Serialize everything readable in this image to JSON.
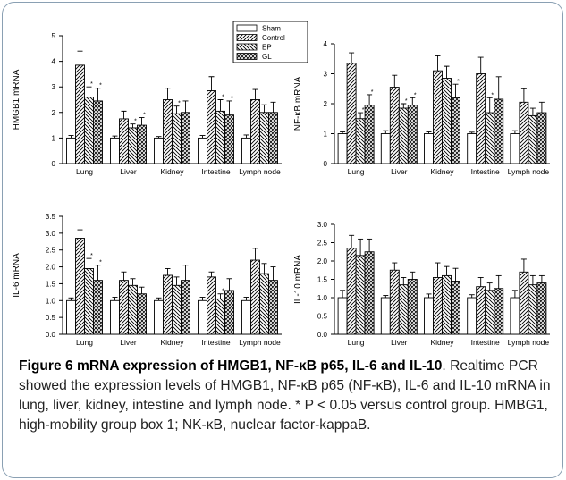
{
  "legend": [
    {
      "name": "Sham",
      "pattern": "plain"
    },
    {
      "name": "Control",
      "pattern": "diag-right"
    },
    {
      "name": "EP",
      "pattern": "diag-left"
    },
    {
      "name": "GL",
      "pattern": "crosshatch"
    }
  ],
  "chart_data": [
    {
      "type": "bar",
      "ylabel": "HMGB1 mRNA",
      "categories": [
        "Lung",
        "Liver",
        "Kidney",
        "Intestine",
        "Lymph node"
      ],
      "ylim": [
        0,
        5
      ],
      "yticks": [
        "0",
        "1",
        "2",
        "3",
        "4",
        "5"
      ],
      "series": [
        {
          "name": "Sham",
          "values": [
            1.0,
            1.0,
            1.0,
            1.0,
            1.0
          ],
          "errors": [
            0.1,
            0.08,
            0.06,
            0.1,
            0.12
          ]
        },
        {
          "name": "Control",
          "values": [
            3.85,
            1.75,
            2.5,
            2.85,
            2.5
          ],
          "errors": [
            0.55,
            0.3,
            0.45,
            0.55,
            0.4
          ]
        },
        {
          "name": "EP",
          "values": [
            2.6,
            1.4,
            1.95,
            2.05,
            2.0
          ],
          "errors": [
            0.4,
            0.15,
            0.3,
            0.45,
            0.3
          ]
        },
        {
          "name": "GL",
          "values": [
            2.45,
            1.5,
            2.0,
            1.9,
            2.0
          ],
          "errors": [
            0.5,
            0.3,
            0.45,
            0.55,
            0.4
          ]
        }
      ],
      "annotations": [
        {
          "category": 0,
          "series": 2,
          "text": "*"
        },
        {
          "category": 0,
          "series": 3,
          "text": "*"
        },
        {
          "category": 1,
          "series": 2,
          "text": "*"
        },
        {
          "category": 1,
          "series": 3,
          "text": "*"
        },
        {
          "category": 2,
          "series": 2,
          "text": "*"
        },
        {
          "category": 3,
          "series": 2,
          "text": "*"
        },
        {
          "category": 3,
          "series": 3,
          "text": "*"
        }
      ]
    },
    {
      "type": "bar",
      "ylabel": "NF-κB mRNA",
      "categories": [
        "Lung",
        "Liver",
        "Kidney",
        "Intestine",
        "Lymph node"
      ],
      "ylim": [
        0,
        4
      ],
      "yticks": [
        "0",
        "1",
        "2",
        "3",
        "4"
      ],
      "series": [
        {
          "name": "Sham",
          "values": [
            1.0,
            1.0,
            1.0,
            1.0,
            1.0
          ],
          "errors": [
            0.06,
            0.1,
            0.06,
            0.05,
            0.1
          ]
        },
        {
          "name": "Control",
          "values": [
            3.35,
            2.55,
            3.1,
            3.0,
            2.05
          ],
          "errors": [
            0.35,
            0.4,
            0.5,
            0.55,
            0.45
          ]
        },
        {
          "name": "EP",
          "values": [
            1.5,
            1.85,
            2.85,
            1.7,
            1.6
          ],
          "errors": [
            0.2,
            0.15,
            0.4,
            0.5,
            0.25
          ]
        },
        {
          "name": "GL",
          "values": [
            1.95,
            1.95,
            2.2,
            2.15,
            1.7
          ],
          "errors": [
            0.35,
            0.25,
            0.45,
            0.75,
            0.35
          ]
        }
      ],
      "annotations": [
        {
          "category": 0,
          "series": 2,
          "text": "*"
        },
        {
          "category": 0,
          "series": 3,
          "text": "*"
        },
        {
          "category": 1,
          "series": 2,
          "text": "*"
        },
        {
          "category": 1,
          "series": 3,
          "text": "*"
        },
        {
          "category": 2,
          "series": 3,
          "text": "*"
        },
        {
          "category": 3,
          "series": 2,
          "text": "*"
        }
      ]
    },
    {
      "type": "bar",
      "ylabel": "IL-6 mRNA",
      "categories": [
        "Lung",
        "Liver",
        "Kidney",
        "Intestine",
        "Lymph node"
      ],
      "ylim": [
        0,
        3.5
      ],
      "yticks": [
        "0.0",
        "0.5",
        "1.0",
        "1.5",
        "2.0",
        "2.5",
        "3.0",
        "3.5"
      ],
      "series": [
        {
          "name": "Sham",
          "values": [
            1.0,
            1.0,
            1.0,
            1.0,
            1.0
          ],
          "errors": [
            0.08,
            0.1,
            0.08,
            0.1,
            0.1
          ]
        },
        {
          "name": "Control",
          "values": [
            2.85,
            1.6,
            1.75,
            1.7,
            2.2
          ],
          "errors": [
            0.25,
            0.25,
            0.2,
            0.15,
            0.35
          ]
        },
        {
          "name": "EP",
          "values": [
            1.95,
            1.45,
            1.45,
            1.05,
            1.8
          ],
          "errors": [
            0.3,
            0.2,
            0.25,
            0.15,
            0.3
          ]
        },
        {
          "name": "GL",
          "values": [
            1.6,
            1.2,
            1.6,
            1.3,
            1.6
          ],
          "errors": [
            0.45,
            0.2,
            0.45,
            0.35,
            0.4
          ]
        }
      ],
      "annotations": [
        {
          "category": 0,
          "series": 2,
          "text": "*"
        },
        {
          "category": 0,
          "series": 3,
          "text": "*"
        },
        {
          "category": 3,
          "series": 2,
          "text": "*"
        }
      ]
    },
    {
      "type": "bar",
      "ylabel": "IL-10 mRNA",
      "categories": [
        "Lung",
        "Liver",
        "Kidney",
        "Intestine",
        "Lymph node"
      ],
      "ylim": [
        0,
        3.0
      ],
      "yticks": [
        "0.0",
        "0.5",
        "1.0",
        "1.5",
        "2.0",
        "2.5",
        "3.0"
      ],
      "series": [
        {
          "name": "Sham",
          "values": [
            1.0,
            1.0,
            1.0,
            1.0,
            1.0
          ],
          "errors": [
            0.2,
            0.06,
            0.1,
            0.08,
            0.2
          ]
        },
        {
          "name": "Control",
          "values": [
            2.35,
            1.75,
            1.55,
            1.3,
            1.7
          ],
          "errors": [
            0.35,
            0.2,
            0.4,
            0.25,
            0.35
          ]
        },
        {
          "name": "EP",
          "values": [
            2.15,
            1.35,
            1.6,
            1.2,
            1.35
          ],
          "errors": [
            0.45,
            0.2,
            0.25,
            0.2,
            0.25
          ]
        },
        {
          "name": "GL",
          "values": [
            2.25,
            1.5,
            1.45,
            1.25,
            1.4
          ],
          "errors": [
            0.35,
            0.2,
            0.35,
            0.35,
            0.2
          ]
        }
      ],
      "annotations": []
    }
  ],
  "caption": {
    "title": "Figure 6 mRNA expression of HMGB1, NF-κB p65, IL-6 and IL-10",
    "text": ". Realtime PCR showed the expression levels of HMGB1, NF-κB p65 (NF-κB), IL-6 and IL-10 mRNA in lung, liver, kidney, intestine and lymph node. * P < 0.05 versus control group. HMBG1, high-mobility group box 1; NK-κB, nuclear factor-kappaB."
  }
}
